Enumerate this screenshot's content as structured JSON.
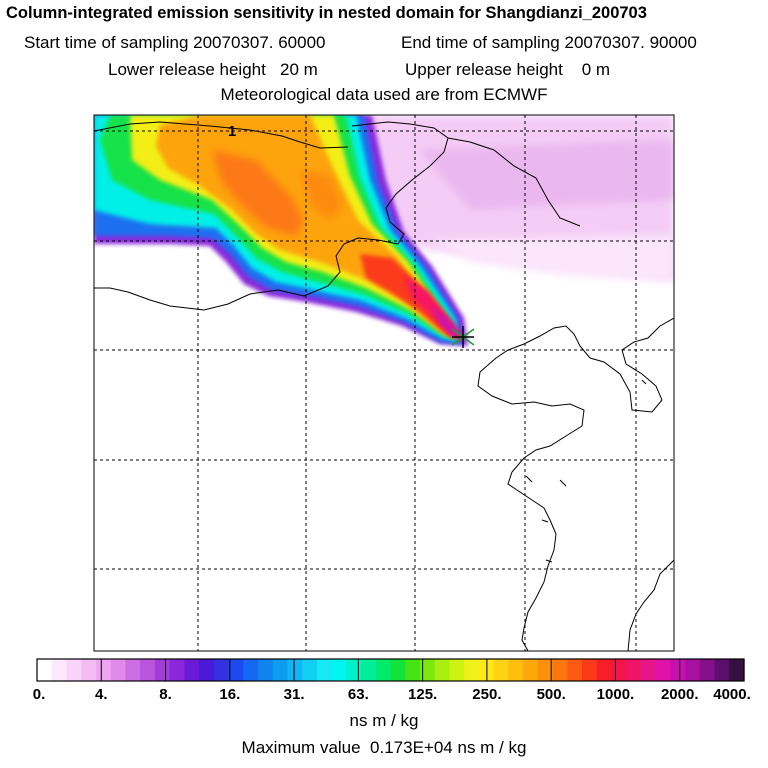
{
  "header": {
    "title": "Column-integrated emission sensitivity in nested domain for Shangdianzi_200703",
    "start_label": "Start time of sampling",
    "start_value": "20070307. 60000",
    "end_label": "End time of sampling",
    "end_value": "20070307. 90000",
    "lower_label": "Lower release height",
    "lower_value": "20 m",
    "upper_label": "Upper release height",
    "upper_value": "0 m",
    "met_line": "Meteorological data used are from ECMWF"
  },
  "map": {
    "contour_label": "1",
    "receptor_marker": "release-point-marker"
  },
  "colorbar": {
    "colors": [
      "#ffffff",
      "#fde8fd",
      "#f9d4f9",
      "#f3bdf3",
      "#eda5f1",
      "#e08ae9",
      "#cc6fe4",
      "#bb55e0",
      "#a23ddc",
      "#8a27db",
      "#6a1ad6",
      "#4a1bd6",
      "#3232e0",
      "#1f49f0",
      "#1468f2",
      "#1083ee",
      "#0d9cf0",
      "#10b6f2",
      "#14cff4",
      "#16e8f4",
      "#00f6ee",
      "#00f2c8",
      "#00ee9c",
      "#00ea6c",
      "#14e23c",
      "#44e414",
      "#7ce810",
      "#a8ee10",
      "#cef214",
      "#eef218",
      "#fde818",
      "#fdd314",
      "#fdbe0c",
      "#fda80a",
      "#fd900a",
      "#fd7610",
      "#fd5a14",
      "#fd3a18",
      "#f81e28",
      "#f51448",
      "#f01468",
      "#e8148a",
      "#e012a8",
      "#c810b0",
      "#a810a0",
      "#84108a",
      "#5c0e6c",
      "#361040"
    ],
    "ticks": [
      "0.",
      "4.",
      "8.",
      "16.",
      "31.",
      "63.",
      "125.",
      "250.",
      "500.",
      "1000.",
      "2000.",
      "4000."
    ],
    "units": "ns m / kg",
    "max_label": "Maximum value",
    "max_value": "0.173E+04 ns m / kg"
  }
}
